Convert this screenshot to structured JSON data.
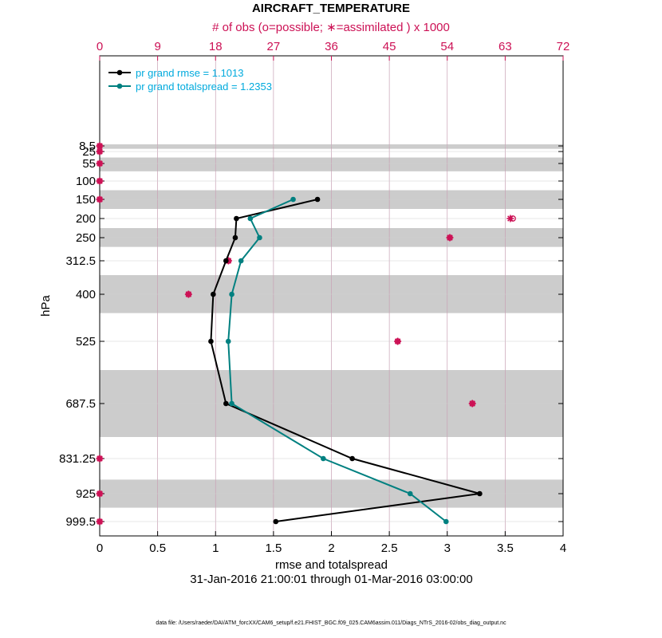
{
  "chart_data": {
    "type": "line",
    "title": "AIRCRAFT_TEMPERATURE",
    "top_axis_label": "# of obs (o=possible; ∗=assimilated ) x 1000",
    "xlabel": "rmse and totalspread",
    "ylabel": "hPa",
    "date_range": "31-Jan-2016 21:00:01 through 01-Mar-2016 03:00:00",
    "footer": "data file: /Users/raeder/DAI/ATM_forcXX/CAM6_setup/f.e21.FHIST_BGC.f09_025.CAM6assim.011/Diags_NTrS_2016-02/obs_diag_output.nc",
    "xlim": [
      0,
      4
    ],
    "x_ticks": [
      "0",
      "0.5",
      "1",
      "1.5",
      "2",
      "2.5",
      "3",
      "3.5",
      "4"
    ],
    "top_xlim": [
      0,
      72
    ],
    "top_ticks": [
      "0",
      "9",
      "18",
      "27",
      "36",
      "45",
      "54",
      "63",
      "72"
    ],
    "y_levels": [
      8.5,
      25,
      55,
      100,
      150,
      200,
      250,
      312.5,
      400,
      525,
      687.5,
      831.25,
      925,
      999.5
    ],
    "y_tick_labels": [
      "8.5",
      "25",
      "55",
      "100",
      "150",
      "200",
      "250",
      "312.5",
      "400",
      "525",
      "687.5",
      "831.25",
      "925",
      "999.5"
    ],
    "shaded_bands_hPa": [
      [
        0,
        17
      ],
      [
        40,
        75
      ],
      [
        125,
        175
      ],
      [
        225,
        275
      ],
      [
        350,
        450
      ],
      [
        600,
        775
      ],
      [
        887.5,
        962.5
      ]
    ],
    "series": [
      {
        "name": "pr grand rmse = 1.1013",
        "color": "#000000",
        "points": [
          [
            1.88,
            150
          ],
          [
            1.18,
            200
          ],
          [
            1.17,
            250
          ],
          [
            1.09,
            312.5
          ],
          [
            0.98,
            400
          ],
          [
            0.96,
            525
          ],
          [
            1.09,
            687.5
          ],
          [
            2.18,
            831.25
          ],
          [
            3.28,
            925
          ],
          [
            1.52,
            999.5
          ]
        ]
      },
      {
        "name": "pr grand totalspread = 1.2353",
        "color": "#008080",
        "points": [
          [
            1.67,
            150
          ],
          [
            1.3,
            200
          ],
          [
            1.38,
            250
          ],
          [
            1.22,
            312.5
          ],
          [
            1.14,
            400
          ],
          [
            1.11,
            525
          ],
          [
            1.14,
            687.5
          ],
          [
            1.93,
            831.25
          ],
          [
            2.68,
            925
          ],
          [
            2.99,
            999.5
          ]
        ]
      }
    ],
    "obs_counts_thousands": [
      {
        "hPa": 8.5,
        "possible": 0,
        "assimilated": 0
      },
      {
        "hPa": 25,
        "possible": 0,
        "assimilated": 0
      },
      {
        "hPa": 55,
        "possible": 0,
        "assimilated": 0
      },
      {
        "hPa": 100,
        "possible": 0,
        "assimilated": 0
      },
      {
        "hPa": 150,
        "possible": 0,
        "assimilated": 0
      },
      {
        "hPa": 200,
        "possible": 64.2,
        "assimilated": 63.8
      },
      {
        "hPa": 250,
        "possible": 54.4,
        "assimilated": 54.4
      },
      {
        "hPa": 312.5,
        "possible": 20.0,
        "assimilated": 20.0
      },
      {
        "hPa": 400,
        "possible": 13.8,
        "assimilated": 13.8
      },
      {
        "hPa": 525,
        "possible": 46.3,
        "assimilated": 46.3
      },
      {
        "hPa": 687.5,
        "possible": 57.9,
        "assimilated": 57.9
      },
      {
        "hPa": 831.25,
        "possible": 0,
        "assimilated": 0
      },
      {
        "hPa": 925,
        "possible": 0,
        "assimilated": 0
      },
      {
        "hPa": 999.5,
        "possible": 0,
        "assimilated": 0
      }
    ],
    "colors": {
      "obs": "#cc1155",
      "legend_text": "#00aadd",
      "grid": "#c8a0b4",
      "band": "#cccccc"
    }
  }
}
